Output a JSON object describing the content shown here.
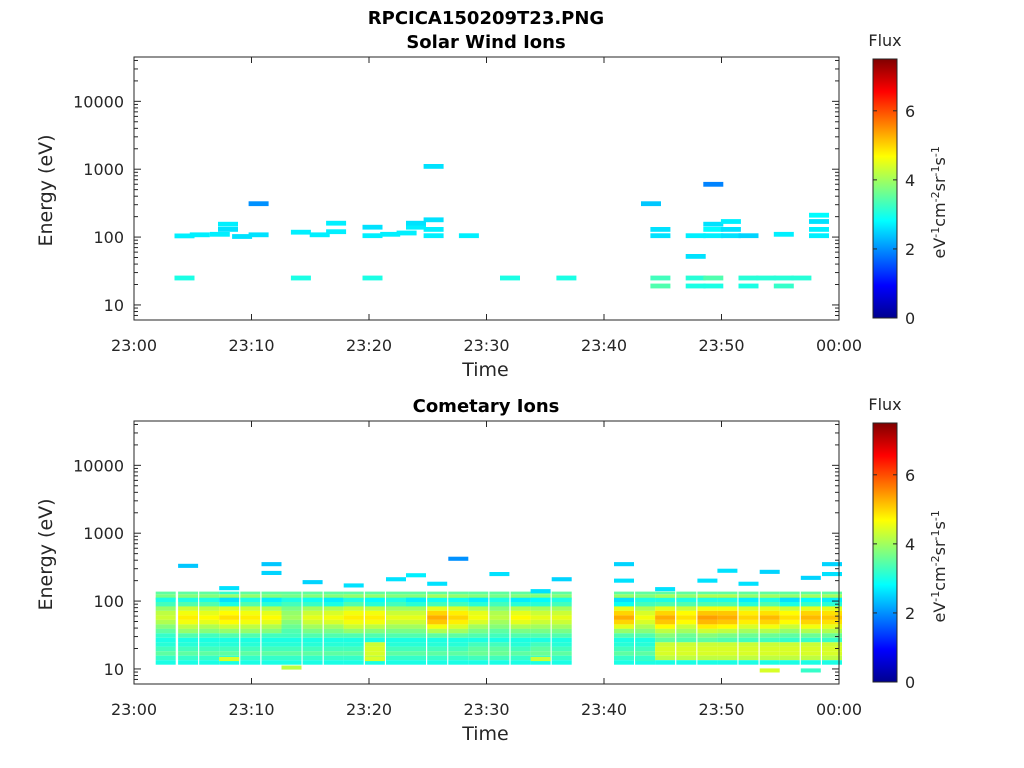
{
  "figure_title": "RPCICA150209T23.PNG",
  "chart_data": [
    {
      "type": "heatmap",
      "title": "Solar Wind Ions",
      "xlabel": "Time",
      "ylabel": "Energy (eV)",
      "x_ticks": [
        "23:00",
        "23:10",
        "23:20",
        "23:30",
        "23:40",
        "23:50",
        "00:00"
      ],
      "y_ticks": [
        "10",
        "100",
        "1000",
        "10000"
      ],
      "ylim": [
        6,
        45000
      ],
      "y_scale": "log",
      "colorbar": {
        "title": "Flux",
        "label": "eV-1cm-2sr-1s-1",
        "range": [
          0,
          7.5
        ],
        "ticks": [
          "0",
          "2",
          "4",
          "6"
        ]
      },
      "cells": [
        [
          4.3,
          104,
          2.7
        ],
        [
          4.3,
          25,
          3.0
        ],
        [
          5.6,
          108,
          2.7
        ],
        [
          7.3,
          110,
          2.7
        ],
        [
          8.0,
          130,
          2.6
        ],
        [
          8.0,
          155,
          2.7
        ],
        [
          9.2,
          102,
          2.6
        ],
        [
          10.6,
          108,
          2.6
        ],
        [
          10.6,
          310,
          2.0
        ],
        [
          14.2,
          118,
          2.7
        ],
        [
          14.2,
          25,
          3.0
        ],
        [
          15.8,
          108,
          2.7
        ],
        [
          17.2,
          120,
          2.7
        ],
        [
          17.2,
          160,
          2.7
        ],
        [
          20.3,
          105,
          2.7
        ],
        [
          20.3,
          140,
          2.6
        ],
        [
          20.3,
          25,
          3.0
        ],
        [
          21.8,
          110,
          2.7
        ],
        [
          23.2,
          115,
          2.7
        ],
        [
          24.0,
          140,
          2.7
        ],
        [
          24.0,
          160,
          2.6
        ],
        [
          25.5,
          105,
          2.7
        ],
        [
          25.5,
          130,
          2.7
        ],
        [
          25.5,
          180,
          2.6
        ],
        [
          25.5,
          1100,
          2.6
        ],
        [
          28.5,
          105,
          2.7
        ],
        [
          32.0,
          25,
          3.0
        ],
        [
          36.8,
          25,
          3.0
        ],
        [
          44.0,
          310,
          2.4
        ],
        [
          44.8,
          105,
          2.6
        ],
        [
          44.8,
          130,
          2.6
        ],
        [
          44.8,
          25,
          3.3
        ],
        [
          44.8,
          19,
          3.4
        ],
        [
          47.8,
          105,
          2.7
        ],
        [
          47.8,
          52,
          2.6
        ],
        [
          47.8,
          25,
          3.1
        ],
        [
          47.8,
          19,
          3.0
        ],
        [
          49.3,
          600,
          1.9
        ],
        [
          49.3,
          105,
          2.7
        ],
        [
          49.3,
          130,
          2.8
        ],
        [
          49.3,
          155,
          2.6
        ],
        [
          49.3,
          25,
          3.4
        ],
        [
          49.3,
          19,
          3.0
        ],
        [
          50.8,
          105,
          2.6
        ],
        [
          50.8,
          130,
          2.6
        ],
        [
          50.8,
          170,
          2.7
        ],
        [
          52.3,
          105,
          2.5
        ],
        [
          52.3,
          25,
          3.1
        ],
        [
          52.3,
          19,
          3.0
        ],
        [
          53.8,
          25,
          3.1
        ],
        [
          55.3,
          110,
          2.7
        ],
        [
          55.3,
          25,
          3.1
        ],
        [
          55.3,
          19,
          3.2
        ],
        [
          56.8,
          25,
          3.1
        ],
        [
          58.3,
          105,
          2.7
        ],
        [
          58.3,
          130,
          2.7
        ],
        [
          58.3,
          170,
          2.6
        ],
        [
          58.3,
          210,
          2.8
        ]
      ]
    },
    {
      "type": "heatmap",
      "title": "Cometary Ions",
      "xlabel": "Time",
      "ylabel": "Energy (eV)",
      "x_ticks": [
        "23:00",
        "23:10",
        "23:20",
        "23:30",
        "23:40",
        "23:50",
        "00:00"
      ],
      "y_ticks": [
        "10",
        "100",
        "1000",
        "10000"
      ],
      "ylim": [
        6,
        45000
      ],
      "y_scale": "log",
      "colorbar": {
        "title": "Flux",
        "label": "eV-1cm-2sr-1s-1",
        "range": [
          0,
          7.5
        ],
        "ticks": [
          "0",
          "2",
          "4",
          "6"
        ]
      },
      "columns": [
        [
          2.7,
          [
            3.5,
            3.7,
            3.9
          ],
          [
            3.0,
            3.3,
            3.9,
            4.2,
            4.3,
            4.1,
            3.8,
            3.5,
            3.2,
            3.0,
            3.1,
            3.3,
            3.5,
            3.2,
            3.0
          ]
        ],
        [
          4.6,
          [
            3.5,
            3.8,
            4.2
          ],
          [
            3.0,
            3.4,
            4.3,
            4.6,
            4.8,
            4.6,
            4.2,
            3.9,
            3.4,
            3.0,
            3.1,
            3.3,
            3.5,
            3.2,
            3.0
          ]
        ],
        [
          6.4,
          [
            3.5,
            3.8,
            4.2
          ],
          [
            3.0,
            3.4,
            4.2,
            4.5,
            4.7,
            4.5,
            4.1,
            3.8,
            3.3,
            3.0,
            3.1,
            3.3,
            3.5,
            3.2,
            3.0
          ]
        ],
        [
          8.1,
          [
            3.2,
            3.9,
            4.4
          ],
          [
            2.6,
            3.0,
            4.4,
            4.7,
            4.9,
            4.7,
            4.3,
            3.9,
            3.4,
            3.0,
            3.1,
            3.3,
            3.5,
            3.2,
            3.0
          ]
        ],
        [
          9.9,
          [
            3.5,
            3.9,
            4.3
          ],
          [
            3.0,
            3.4,
            4.3,
            4.6,
            4.8,
            4.6,
            4.2,
            3.9,
            3.4,
            3.0,
            3.1,
            3.3,
            3.5,
            3.2,
            3.0
          ]
        ],
        [
          11.7,
          [
            3.5,
            3.8,
            4.2
          ],
          [
            2.7,
            3.1,
            4.1,
            4.5,
            4.7,
            4.5,
            4.1,
            3.8,
            3.3,
            3.0,
            3.1,
            3.3,
            3.5,
            3.2,
            3.0
          ]
        ],
        [
          13.4,
          [
            3.5,
            3.7,
            4.0
          ],
          [
            3.0,
            3.3,
            3.7,
            3.9,
            4.0,
            3.8,
            3.6,
            3.4,
            3.3,
            3.0,
            3.1,
            3.3,
            3.5,
            3.2,
            3.0
          ]
        ],
        [
          15.2,
          [
            3.5,
            3.8,
            4.1
          ],
          [
            2.9,
            3.2,
            4.0,
            4.3,
            4.5,
            4.3,
            4.0,
            3.7,
            3.4,
            3.0,
            3.1,
            3.3,
            3.5,
            3.2,
            3.0
          ]
        ],
        [
          17.0,
          [
            3.5,
            3.8,
            4.2
          ],
          [
            2.7,
            3.0,
            4.1,
            4.4,
            4.6,
            4.4,
            4.0,
            3.7,
            3.4,
            3.0,
            3.1,
            3.3,
            3.5,
            3.2,
            3.0
          ]
        ],
        [
          18.7,
          [
            3.5,
            3.9,
            4.4
          ],
          [
            3.0,
            3.4,
            4.3,
            4.6,
            4.8,
            4.6,
            4.3,
            3.9,
            3.4,
            3.0,
            3.1,
            3.3,
            3.5,
            3.2,
            3.0
          ]
        ],
        [
          20.5,
          [
            3.5,
            3.9,
            4.4
          ],
          [
            2.8,
            3.1,
            4.2,
            4.6,
            4.8,
            4.6,
            4.2,
            3.8,
            3.4,
            3.0,
            4.3,
            4.4,
            4.4,
            4.2,
            3.0
          ]
        ],
        [
          22.3,
          [
            3.5,
            3.8,
            4.1
          ],
          [
            3.0,
            3.3,
            4.0,
            4.3,
            4.5,
            4.3,
            4.0,
            3.7,
            3.4,
            3.0,
            3.1,
            3.3,
            3.5,
            3.2,
            3.0
          ]
        ],
        [
          24.0,
          [
            3.5,
            3.8,
            4.1
          ],
          [
            2.7,
            3.1,
            4.0,
            4.3,
            4.5,
            4.3,
            4.0,
            3.7,
            3.4,
            3.0,
            3.1,
            3.3,
            3.5,
            3.2,
            3.0
          ]
        ],
        [
          25.8,
          [
            3.5,
            4.0,
            4.7
          ],
          [
            2.9,
            3.3,
            4.5,
            5.0,
            5.3,
            5.1,
            4.6,
            4.1,
            3.5,
            3.0,
            3.1,
            3.3,
            3.5,
            3.2,
            3.0
          ]
        ],
        [
          27.6,
          [
            3.5,
            3.9,
            4.5
          ],
          [
            2.9,
            3.3,
            4.4,
            4.8,
            5.0,
            4.8,
            4.4,
            4.0,
            3.5,
            3.0,
            3.1,
            3.3,
            3.5,
            3.2,
            3.0
          ]
        ],
        [
          29.3,
          [
            3.5,
            3.8,
            4.2
          ],
          [
            2.7,
            3.1,
            4.1,
            4.5,
            4.6,
            4.4,
            4.0,
            3.7,
            3.4,
            3.0,
            3.3,
            3.5,
            3.6,
            3.3,
            3.0
          ]
        ],
        [
          31.1,
          [
            3.5,
            3.7,
            4.0
          ],
          [
            3.0,
            3.3,
            3.8,
            4.1,
            4.2,
            4.0,
            3.8,
            3.5,
            3.3,
            3.0,
            3.3,
            3.5,
            3.6,
            3.3,
            3.0
          ]
        ],
        [
          32.9,
          [
            3.5,
            3.8,
            4.3
          ],
          [
            2.7,
            3.1,
            4.1,
            4.5,
            4.7,
            4.5,
            4.1,
            3.7,
            3.4,
            3.0,
            3.1,
            3.3,
            3.5,
            3.2,
            3.0
          ]
        ],
        [
          34.6,
          [
            3.5,
            3.8,
            4.1
          ],
          [
            2.8,
            3.1,
            4.0,
            4.3,
            4.5,
            4.3,
            4.0,
            3.7,
            3.4,
            3.0,
            3.3,
            3.5,
            3.6,
            3.3,
            3.0
          ]
        ],
        [
          36.4,
          [
            3.5,
            3.8,
            4.1
          ],
          [
            3.0,
            3.3,
            4.0,
            4.3,
            4.5,
            4.3,
            4.0,
            3.7,
            3.4,
            3.0,
            3.1,
            3.3,
            3.5,
            3.2,
            3.0
          ]
        ],
        [
          41.7,
          [
            3.5,
            3.9,
            4.6
          ],
          [
            2.6,
            2.9,
            4.5,
            5.0,
            5.3,
            5.0,
            4.5,
            3.9,
            3.4,
            3.0,
            3.1,
            3.3,
            3.5,
            3.2,
            3.0
          ]
        ],
        [
          43.5,
          [
            3.5,
            3.8,
            4.2
          ],
          [
            3.0,
            3.3,
            4.1,
            4.4,
            4.6,
            4.4,
            4.1,
            3.8,
            3.4,
            3.0,
            3.1,
            3.3,
            3.5,
            3.2,
            3.0
          ]
        ],
        [
          45.2,
          [
            3.5,
            4.0,
            4.7
          ],
          [
            3.0,
            3.4,
            4.5,
            5.0,
            5.3,
            5.1,
            4.7,
            4.2,
            3.8,
            3.5,
            4.3,
            4.4,
            4.4,
            4.2,
            3.0
          ]
        ],
        [
          47.0,
          [
            3.5,
            3.9,
            4.4
          ],
          [
            3.0,
            3.4,
            4.3,
            4.7,
            4.9,
            4.7,
            4.3,
            4.0,
            3.6,
            3.4,
            4.3,
            4.4,
            4.4,
            4.2,
            3.0
          ]
        ],
        [
          48.8,
          [
            3.5,
            4.1,
            4.8
          ],
          [
            3.0,
            3.4,
            4.6,
            5.1,
            5.4,
            5.2,
            4.8,
            4.3,
            3.8,
            3.5,
            4.3,
            4.4,
            4.4,
            4.2,
            3.0
          ]
        ],
        [
          50.5,
          [
            3.5,
            4.1,
            4.8
          ],
          [
            3.0,
            3.4,
            4.6,
            5.1,
            5.3,
            5.1,
            4.7,
            4.2,
            3.7,
            3.4,
            4.3,
            4.4,
            4.4,
            4.2,
            3.0
          ]
        ],
        [
          52.3,
          [
            3.5,
            3.9,
            4.5
          ],
          [
            2.7,
            3.1,
            4.4,
            4.8,
            5.0,
            4.8,
            4.4,
            4.0,
            3.6,
            3.3,
            4.3,
            4.4,
            4.4,
            4.2,
            3.0
          ]
        ],
        [
          54.1,
          [
            3.5,
            4.0,
            4.6
          ],
          [
            3.0,
            3.4,
            4.5,
            4.9,
            5.2,
            5.0,
            4.6,
            4.1,
            3.6,
            3.3,
            4.3,
            4.4,
            4.4,
            4.2,
            3.0
          ]
        ],
        [
          55.8,
          [
            3.5,
            3.9,
            4.4
          ],
          [
            2.6,
            3.0,
            4.3,
            4.7,
            4.9,
            4.7,
            4.3,
            3.9,
            3.5,
            3.2,
            4.3,
            4.4,
            4.4,
            4.2,
            3.0
          ]
        ],
        [
          57.6,
          [
            3.5,
            4.0,
            4.7
          ],
          [
            2.8,
            3.2,
            4.5,
            5.0,
            5.2,
            5.0,
            4.6,
            4.1,
            3.6,
            3.2,
            4.3,
            4.4,
            4.4,
            4.2,
            3.0
          ]
        ],
        [
          59.4,
          [
            3.5,
            4.0,
            4.6
          ],
          [
            2.7,
            3.1,
            4.5,
            4.9,
            5.1,
            4.9,
            4.5,
            4.1,
            3.6,
            3.2,
            4.3,
            4.4,
            4.4,
            4.2,
            3.0
          ]
        ]
      ],
      "extra_cells": [
        [
          4.6,
          330,
          2.4
        ],
        [
          8.1,
          155,
          2.6
        ],
        [
          11.7,
          260,
          2.5
        ],
        [
          11.7,
          350,
          2.4
        ],
        [
          15.2,
          190,
          2.5
        ],
        [
          18.7,
          170,
          2.6
        ],
        [
          22.3,
          210,
          2.6
        ],
        [
          24.0,
          240,
          2.7
        ],
        [
          25.8,
          180,
          2.6
        ],
        [
          27.6,
          420,
          2.0
        ],
        [
          31.1,
          250,
          2.6
        ],
        [
          34.6,
          140,
          2.6
        ],
        [
          36.4,
          210,
          2.5
        ],
        [
          41.7,
          350,
          2.5
        ],
        [
          41.7,
          200,
          2.6
        ],
        [
          45.2,
          150,
          2.6
        ],
        [
          48.8,
          200,
          2.6
        ],
        [
          50.5,
          280,
          2.6
        ],
        [
          52.3,
          180,
          2.6
        ],
        [
          54.1,
          270,
          2.5
        ],
        [
          57.6,
          220,
          2.5
        ],
        [
          59.4,
          350,
          2.5
        ],
        [
          59.4,
          250,
          2.6
        ],
        [
          54.1,
          9.5,
          4.4
        ],
        [
          57.6,
          9.5,
          3.2
        ],
        [
          13.4,
          10.5,
          4.2
        ],
        [
          8.1,
          14,
          4.4
        ],
        [
          34.6,
          14,
          4.3
        ],
        [
          43.5,
          14,
          3.2
        ],
        [
          20.5,
          14,
          4.4
        ]
      ]
    }
  ]
}
